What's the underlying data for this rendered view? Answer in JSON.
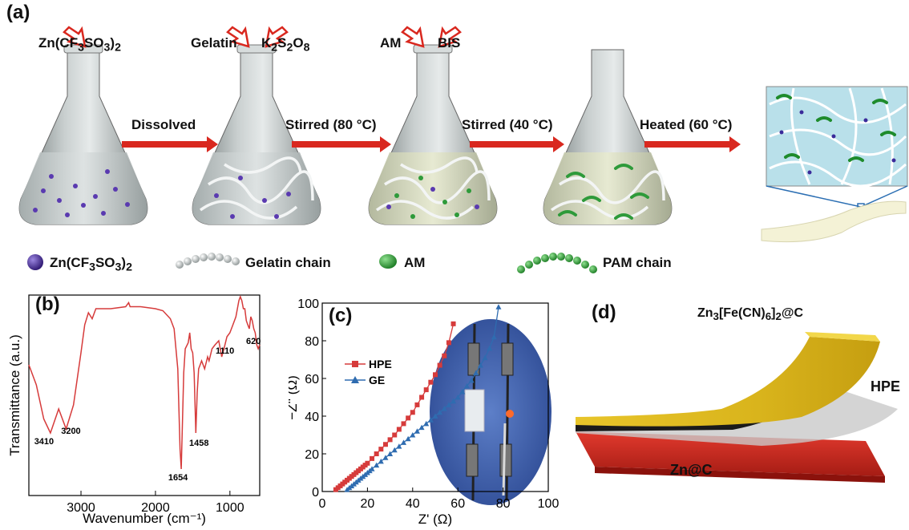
{
  "panel_a": {
    "label": "(a)",
    "flask_reagents": [
      {
        "parts": [
          "Zn(CF",
          "3",
          "SO",
          "3",
          ")",
          "2"
        ]
      },
      {
        "parts": [
          "Gelatin"
        ]
      },
      {
        "parts": [
          "K",
          "2",
          "S",
          "2",
          "O",
          "8"
        ]
      },
      {
        "parts": [
          "AM"
        ]
      },
      {
        "parts": [
          "BIS"
        ]
      }
    ],
    "steps": [
      "Dissolved",
      "Stirred (80 °C)",
      "Stirred (40 °C)",
      "Heated (60 °C)"
    ],
    "legend": [
      {
        "icon": "purple-sphere-icon",
        "parts": [
          "Zn(CF",
          "3",
          "SO",
          "3",
          ")",
          "2"
        ]
      },
      {
        "icon": "gelatin-chain-icon",
        "parts": [
          "Gelatin chain"
        ]
      },
      {
        "icon": "green-sphere-icon",
        "parts": [
          "AM"
        ]
      },
      {
        "icon": "pam-chain-icon",
        "parts": [
          "PAM chain"
        ]
      }
    ],
    "colors": {
      "arrow": "#d9281f",
      "flask": "#9aa3a3",
      "zn_dot": "#4b2a8f",
      "am": "#2e9a3a"
    }
  },
  "panel_b": {
    "label": "(b)",
    "xlabel": "Wavenumber (cm⁻¹)",
    "ylabel": "Transmittance (a.u.)",
    "annotations": [
      "3410",
      "3200",
      "1654",
      "1458",
      "1110",
      "620"
    ]
  },
  "panel_c": {
    "label": "(c)",
    "xlabel": "Z' (Ω)",
    "ylabel": "−Z'' (Ω)",
    "legend": [
      "HPE",
      "GE"
    ]
  },
  "panel_d": {
    "label": "(d)",
    "top_layer": [
      "Zn",
      "3",
      "[Fe(CN)",
      "6",
      "]",
      "2",
      "@C"
    ],
    "middle_layer": "HPE",
    "bottom_layer": "Zn@C"
  },
  "chart_data": [
    {
      "type": "line",
      "panel": "b",
      "xlabel": "Wavenumber (cm⁻¹)",
      "ylabel": "Transmittance (a.u.)",
      "xlim": [
        3700,
        600
      ],
      "x_ticks": [
        3000,
        2000,
        1000
      ],
      "y_ticks": [],
      "grid": false,
      "series": [
        {
          "color": "#d63b3b",
          "x": [
            3700,
            3600,
            3500,
            3410,
            3300,
            3200,
            3100,
            3000,
            2950,
            2900,
            2850,
            2800,
            2600,
            2400,
            2360,
            2340,
            2200,
            2000,
            1900,
            1800,
            1750,
            1700,
            1670,
            1654,
            1640,
            1620,
            1600,
            1560,
            1540,
            1520,
            1500,
            1480,
            1458,
            1440,
            1420,
            1400,
            1380,
            1340,
            1300,
            1280,
            1240,
            1200,
            1150,
            1110,
            1080,
            1040,
            1000,
            960,
            920,
            880,
            860,
            840,
            820,
            800,
            780,
            760,
            740,
            720,
            700,
            680,
            660,
            640,
            620,
            600
          ],
          "y": [
            62,
            52,
            35,
            28,
            40,
            30,
            42,
            68,
            82,
            88,
            85,
            90,
            90,
            91,
            93,
            91,
            91,
            90,
            89,
            85,
            80,
            60,
            20,
            10,
            30,
            58,
            70,
            73,
            78,
            70,
            68,
            58,
            28,
            48,
            60,
            62,
            64,
            60,
            66,
            64,
            70,
            72,
            74,
            66,
            70,
            76,
            78,
            82,
            86,
            94,
            96,
            94,
            90,
            90,
            84,
            82,
            80,
            86,
            84,
            80,
            78,
            72,
            70,
            72
          ]
        }
      ],
      "annotations": [
        {
          "text": "3410",
          "x": 3410
        },
        {
          "text": "3200",
          "x": 3200
        },
        {
          "text": "1654",
          "x": 1654
        },
        {
          "text": "1458",
          "x": 1458
        },
        {
          "text": "1110",
          "x": 1110
        },
        {
          "text": "620",
          "x": 620
        }
      ]
    },
    {
      "type": "scatter",
      "panel": "c",
      "xlabel": "Z' (Ω)",
      "ylabel": "−Z'' (Ω)",
      "xlim": [
        0,
        100
      ],
      "ylim": [
        0,
        100
      ],
      "x_ticks": [
        0,
        20,
        40,
        60,
        80,
        100
      ],
      "y_ticks": [
        0,
        20,
        40,
        60,
        80,
        100
      ],
      "legend_position": "upper-left",
      "series": [
        {
          "name": "HPE",
          "color": "#d63b3b",
          "marker": "square",
          "x": [
            6,
            7,
            8,
            9,
            10,
            11,
            12,
            13,
            14,
            15,
            16,
            17,
            18,
            19,
            20,
            22,
            24,
            26,
            28,
            30,
            32,
            34,
            36,
            38,
            40,
            42,
            44,
            46,
            48,
            50,
            52,
            54,
            56,
            58
          ],
          "y": [
            1,
            2,
            3,
            4,
            5,
            6,
            7,
            8,
            9,
            10,
            11,
            12,
            13,
            14,
            15,
            17.5,
            20,
            22.5,
            25,
            27.5,
            30,
            33,
            36,
            39,
            42,
            46,
            50,
            54,
            58,
            62,
            67,
            72,
            79,
            89
          ]
        },
        {
          "name": "GE",
          "color": "#2f6cb0",
          "marker": "triangle",
          "x": [
            11,
            12,
            13,
            14,
            15,
            16,
            17,
            18,
            19,
            20,
            21,
            22,
            24,
            26,
            28,
            30,
            32,
            34,
            36,
            38,
            40,
            42,
            44,
            46,
            48,
            50,
            52,
            54,
            56,
            58,
            60,
            62,
            64,
            66,
            68,
            70,
            72,
            74,
            76,
            78
          ],
          "y": [
            1,
            2,
            3,
            4,
            5,
            6,
            7,
            8,
            9,
            10,
            11,
            12,
            14,
            16,
            18,
            20,
            22,
            24,
            26,
            28,
            30,
            32,
            34,
            36,
            38,
            40,
            42,
            44,
            46,
            48,
            50,
            53,
            56,
            59,
            63,
            67,
            71,
            76,
            82,
            98
          ]
        }
      ]
    }
  ]
}
